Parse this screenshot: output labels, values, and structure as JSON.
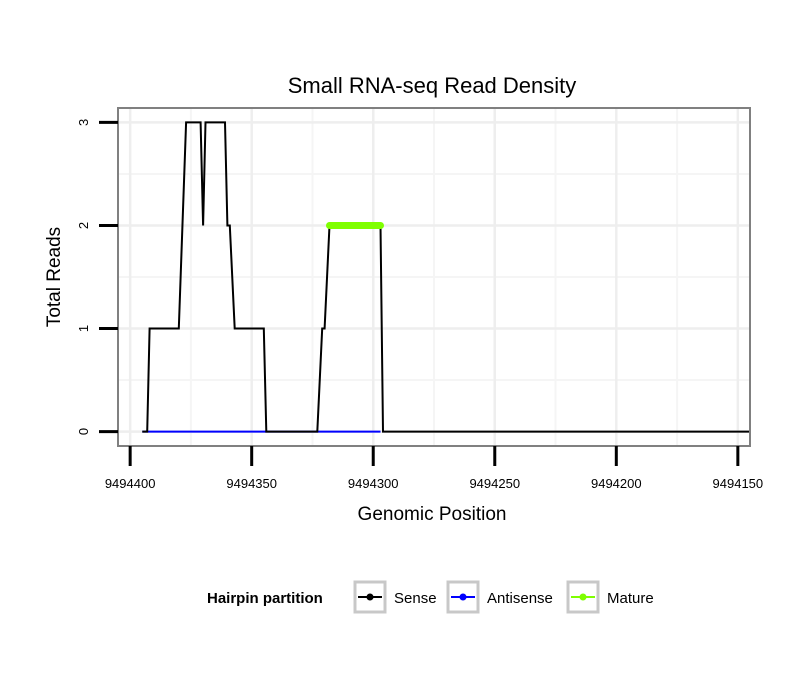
{
  "chart_data": {
    "type": "line",
    "title": "Small RNA-seq Read Density",
    "xlabel": "Genomic Position",
    "ylabel": "Total Reads",
    "x_reversed": true,
    "xlim": [
      9494405,
      9494145
    ],
    "ylim": [
      -0.14,
      3.14
    ],
    "x_ticks": [
      9494400,
      9494350,
      9494300,
      9494250,
      9494200,
      9494150
    ],
    "x_tick_labels": [
      "9494400",
      "9494350",
      "9494300",
      "9494250",
      "9494200",
      "9494150"
    ],
    "y_ticks": [
      0,
      1,
      2,
      3
    ],
    "y_tick_labels": [
      "0",
      "1",
      "2",
      "3"
    ],
    "grid": true,
    "legend": {
      "title": "Hairpin partition",
      "position": "bottom",
      "items": [
        "Sense",
        "Antisense",
        "Mature"
      ]
    },
    "series": [
      {
        "name": "Sense",
        "color": "#000000",
        "x": [
          9494395,
          9494393,
          9494392,
          9494380,
          9494377,
          9494371,
          9494370,
          9494369,
          9494367,
          9494361,
          9494360,
          9494359,
          9494357,
          9494356,
          9494345,
          9494344,
          9494323,
          9494321,
          9494320,
          9494318,
          9494297,
          9494296,
          9494145
        ],
        "y": [
          0,
          0,
          1,
          1,
          3,
          3,
          2,
          3,
          3,
          3,
          2,
          2,
          1,
          1,
          1,
          0,
          0,
          1,
          1,
          2,
          2,
          0,
          0
        ]
      },
      {
        "name": "Antisense",
        "color": "#0000ff",
        "x": [
          9494395,
          9494297
        ],
        "y": [
          0,
          0
        ]
      },
      {
        "name": "Mature",
        "color": "#7fff00",
        "x": [
          9494318,
          9494297
        ],
        "y": [
          2,
          2
        ]
      }
    ]
  }
}
